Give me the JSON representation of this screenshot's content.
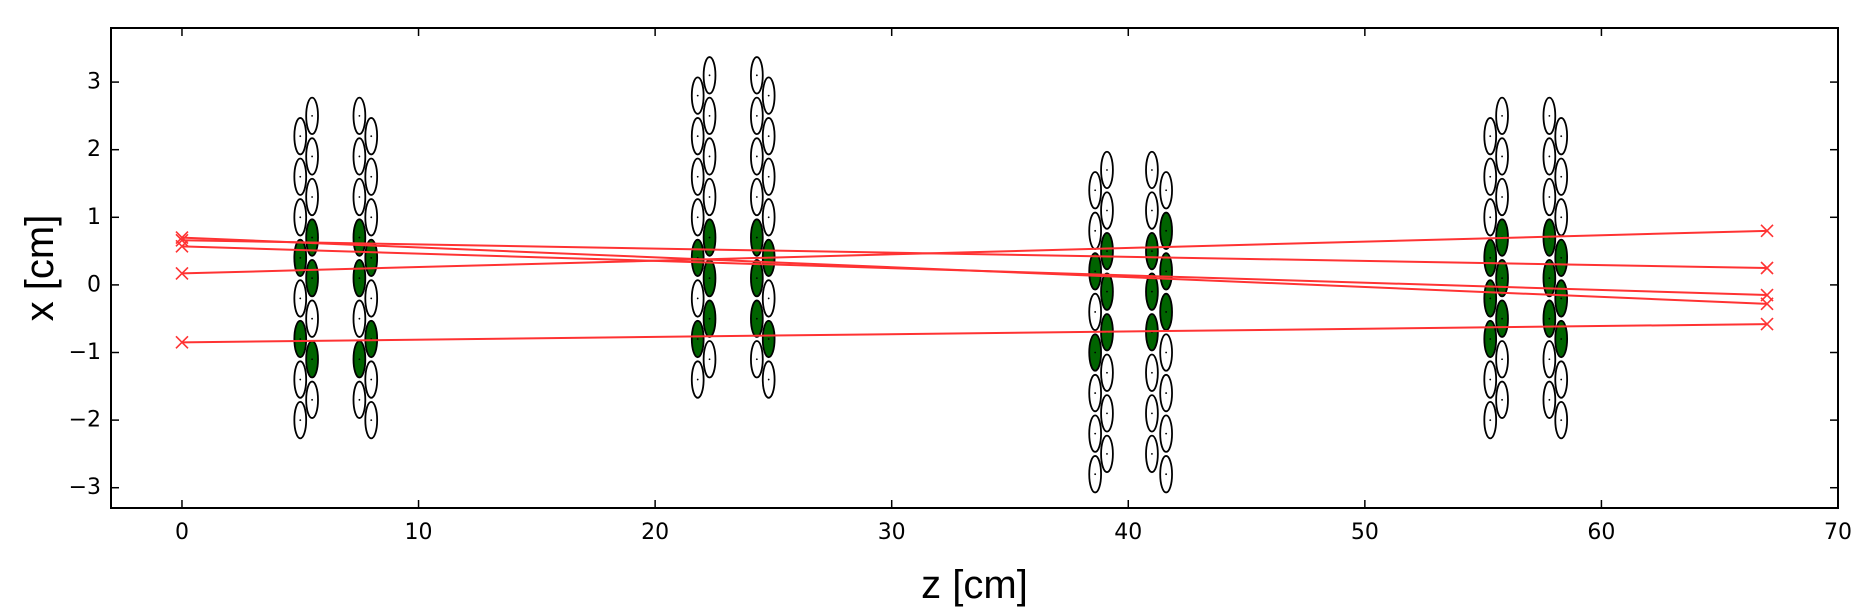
{
  "chart_data": {
    "type": "scatter",
    "title": "",
    "xlabel": "z [cm]",
    "ylabel": "x [cm]",
    "xlim": [
      -3,
      70
    ],
    "ylim": [
      -3.3,
      3.8
    ],
    "xticks": [
      0,
      10,
      20,
      30,
      40,
      50,
      60,
      70
    ],
    "yticks": [
      -3,
      -2,
      -1,
      0,
      1,
      2,
      3
    ],
    "ytick_labels": [
      "−3",
      "−2",
      "−1",
      "0",
      "1",
      "2",
      "3"
    ],
    "grid": false,
    "legend": "none",
    "colors": {
      "track": "#ff3333",
      "hit_fill": "#006400",
      "detector_fill": "#ffffff",
      "detector_edge": "#000000",
      "axes": "#000000"
    },
    "tracks": [
      {
        "z_start": 0,
        "x_start": 0.7,
        "z_end": 67,
        "x_end": -0.28
      },
      {
        "z_start": 0,
        "x_start": 0.66,
        "z_end": 67,
        "x_end": 0.25
      },
      {
        "z_start": 0,
        "x_start": 0.57,
        "z_end": 67,
        "x_end": -0.15
      },
      {
        "z_start": 0,
        "x_start": 0.17,
        "z_end": 67,
        "x_end": 0.8
      },
      {
        "z_start": 0,
        "x_start": -0.85,
        "z_end": 67,
        "x_end": -0.58
      }
    ],
    "detector_element": {
      "half_width_z": 0.25,
      "half_height_x": 0.27
    },
    "columns": [
      {
        "z": 5.0,
        "x": [
          -2.0,
          -1.4,
          -0.8,
          -0.2,
          0.4,
          1.0,
          1.6,
          2.2
        ],
        "hits": [
          -0.8,
          0.4
        ]
      },
      {
        "z": 5.5,
        "x": [
          -1.7,
          -1.1,
          -0.5,
          0.1,
          0.7,
          1.3,
          1.9,
          2.5
        ],
        "hits": [
          -1.1,
          0.1,
          0.7
        ]
      },
      {
        "z": 7.5,
        "x": [
          -1.7,
          -1.1,
          -0.5,
          0.1,
          0.7,
          1.3,
          1.9,
          2.5
        ],
        "hits": [
          -1.1,
          0.1,
          0.7
        ]
      },
      {
        "z": 8.0,
        "x": [
          -2.0,
          -1.4,
          -0.8,
          -0.2,
          0.4,
          1.0,
          1.6,
          2.2
        ],
        "hits": [
          -0.8,
          0.4
        ]
      },
      {
        "z": 21.8,
        "x": [
          -1.4,
          -0.8,
          -0.2,
          0.4,
          1.0,
          1.6,
          2.2,
          2.8
        ],
        "hits": [
          -0.8,
          0.4
        ]
      },
      {
        "z": 22.3,
        "x": [
          -1.1,
          -0.5,
          0.1,
          0.7,
          1.3,
          1.9,
          2.5,
          3.1
        ],
        "hits": [
          -0.5,
          0.1,
          0.7
        ]
      },
      {
        "z": 24.3,
        "x": [
          -1.1,
          -0.5,
          0.1,
          0.7,
          1.3,
          1.9,
          2.5,
          3.1
        ],
        "hits": [
          -0.5,
          0.1,
          0.7
        ]
      },
      {
        "z": 24.8,
        "x": [
          -1.4,
          -0.8,
          -0.2,
          0.4,
          1.0,
          1.6,
          2.2,
          2.8
        ],
        "hits": [
          -0.8,
          0.4
        ]
      },
      {
        "z": 38.6,
        "x": [
          -2.8,
          -2.2,
          -1.6,
          -1.0,
          -0.4,
          0.2,
          0.8,
          1.4
        ],
        "hits": [
          -1.0,
          0.2
        ]
      },
      {
        "z": 39.1,
        "x": [
          -2.5,
          -1.9,
          -1.3,
          -0.7,
          -0.1,
          0.5,
          1.1,
          1.7
        ],
        "hits": [
          -0.7,
          -0.1,
          0.5
        ]
      },
      {
        "z": 41.0,
        "x": [
          -2.5,
          -1.9,
          -1.3,
          -0.7,
          -0.1,
          0.5,
          1.1,
          1.7
        ],
        "hits": [
          -0.7,
          -0.1,
          0.5
        ]
      },
      {
        "z": 41.6,
        "x": [
          -2.8,
          -2.2,
          -1.6,
          -1.0,
          -0.4,
          0.2,
          0.8,
          1.4
        ],
        "hits": [
          -0.4,
          0.2,
          0.8
        ]
      },
      {
        "z": 55.3,
        "x": [
          -2.0,
          -1.4,
          -0.8,
          -0.2,
          0.4,
          1.0,
          1.6,
          2.2
        ],
        "hits": [
          -0.8,
          -0.2,
          0.4
        ]
      },
      {
        "z": 55.8,
        "x": [
          -1.7,
          -1.1,
          -0.5,
          0.1,
          0.7,
          1.3,
          1.9,
          2.5
        ],
        "hits": [
          -0.5,
          0.1,
          0.7
        ]
      },
      {
        "z": 57.8,
        "x": [
          -1.7,
          -1.1,
          -0.5,
          0.1,
          0.7,
          1.3,
          1.9,
          2.5
        ],
        "hits": [
          -0.5,
          0.1,
          0.7
        ]
      },
      {
        "z": 58.3,
        "x": [
          -2.0,
          -1.4,
          -0.8,
          -0.2,
          0.4,
          1.0,
          1.6,
          2.2
        ],
        "hits": [
          -0.8,
          -0.2,
          0.4
        ]
      }
    ]
  }
}
